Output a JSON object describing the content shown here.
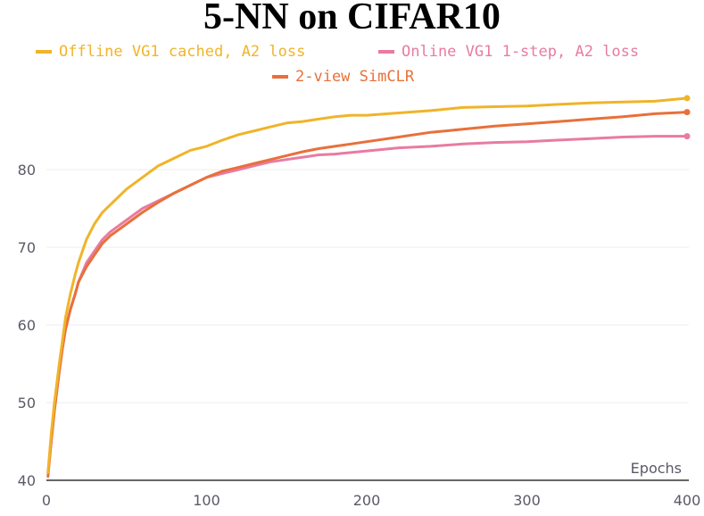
{
  "chart_data": {
    "type": "line",
    "title": "5-NN on CIFAR10",
    "xlabel": "Epochs",
    "ylabel": "",
    "xlim": [
      0,
      400
    ],
    "ylim": [
      40,
      90
    ],
    "x_ticks": [
      0,
      100,
      200,
      300,
      400
    ],
    "y_ticks": [
      40,
      50,
      60,
      70,
      80
    ],
    "grid": true,
    "legend_position": "top",
    "series": [
      {
        "name": "Offline VG1 cached, A2 loss",
        "color": "#f0b429",
        "x": [
          1,
          3,
          5,
          8,
          10,
          12,
          15,
          18,
          20,
          25,
          30,
          35,
          40,
          50,
          60,
          70,
          80,
          90,
          100,
          110,
          120,
          130,
          140,
          150,
          160,
          170,
          180,
          190,
          200,
          220,
          240,
          260,
          280,
          300,
          320,
          340,
          360,
          380,
          400
        ],
        "y": [
          41,
          46,
          50,
          55,
          58,
          61,
          64,
          66.5,
          68,
          71,
          73,
          74.5,
          75.5,
          77.5,
          79,
          80.5,
          81.5,
          82.5,
          83,
          83.8,
          84.5,
          85,
          85.5,
          86,
          86.2,
          86.5,
          86.8,
          87,
          87,
          87.3,
          87.6,
          88,
          88.1,
          88.2,
          88.4,
          88.6,
          88.7,
          88.8,
          89.2
        ]
      },
      {
        "name": "Online VG1 1-step, A2 loss",
        "color": "#e87ba3",
        "x": [
          1,
          3,
          5,
          8,
          10,
          12,
          15,
          18,
          20,
          25,
          30,
          35,
          40,
          50,
          60,
          70,
          80,
          90,
          100,
          110,
          120,
          130,
          140,
          150,
          160,
          170,
          180,
          190,
          200,
          220,
          240,
          260,
          280,
          300,
          320,
          340,
          360,
          380,
          400
        ],
        "y": [
          41,
          45,
          49,
          54,
          57,
          59.5,
          62,
          64,
          65.5,
          68,
          69.5,
          71,
          72,
          73.5,
          75,
          76,
          77,
          78,
          79,
          79.5,
          80,
          80.5,
          81,
          81.3,
          81.6,
          81.9,
          82,
          82.2,
          82.4,
          82.8,
          83,
          83.3,
          83.5,
          83.6,
          83.8,
          84,
          84.2,
          84.3,
          84.3
        ]
      },
      {
        "name": "2-view SimCLR",
        "color": "#e8703a",
        "x": [
          1,
          3,
          5,
          8,
          10,
          12,
          15,
          18,
          20,
          25,
          30,
          35,
          40,
          50,
          60,
          70,
          80,
          90,
          100,
          110,
          120,
          130,
          140,
          150,
          160,
          170,
          180,
          190,
          200,
          220,
          240,
          260,
          280,
          300,
          320,
          340,
          360,
          380,
          400
        ],
        "y": [
          40.5,
          45,
          49,
          54,
          57,
          59.5,
          62,
          64,
          65.5,
          67.5,
          69,
          70.5,
          71.5,
          73,
          74.5,
          75.8,
          77,
          78,
          79,
          79.8,
          80.3,
          80.8,
          81.3,
          81.8,
          82.3,
          82.7,
          83,
          83.3,
          83.6,
          84.2,
          84.8,
          85.2,
          85.6,
          85.9,
          86.2,
          86.5,
          86.8,
          87.2,
          87.4
        ]
      }
    ]
  }
}
